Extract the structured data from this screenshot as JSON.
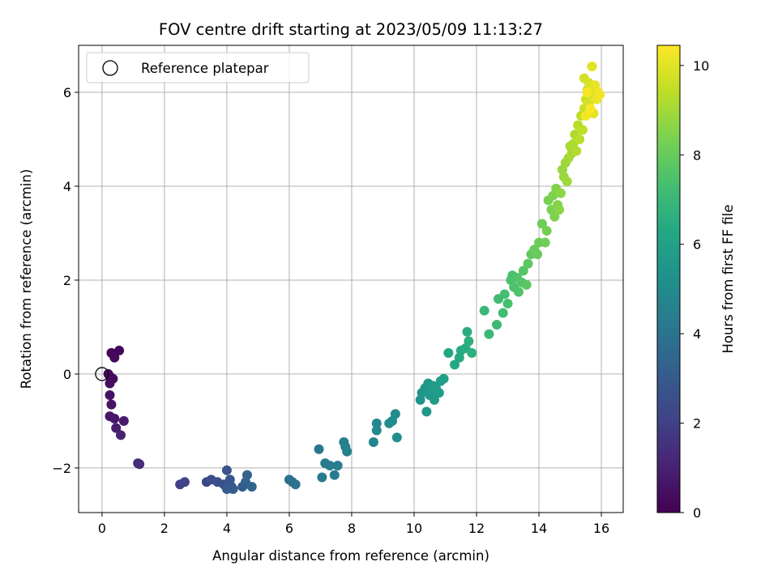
{
  "chart_data": {
    "type": "scatter",
    "title": "FOV centre drift starting at 2023/05/09 11:13:27",
    "xlabel": "Angular distance from reference (arcmin)",
    "ylabel": "Rotation from reference (arcmin)",
    "xlim": [
      -0.75,
      16.7
    ],
    "ylim": [
      -2.95,
      7.0
    ],
    "xticks": [
      0,
      2,
      4,
      6,
      8,
      10,
      12,
      14,
      16
    ],
    "xtick_labels": [
      "0",
      "2",
      "4",
      "6",
      "8",
      "10",
      "12",
      "14",
      "16"
    ],
    "yticks": [
      -2,
      0,
      2,
      4,
      6
    ],
    "ytick_labels": [
      "−2",
      "0",
      "2",
      "4",
      "6"
    ],
    "grid": true,
    "legend": {
      "placement": "upper-left",
      "entries": [
        "Reference platepar"
      ]
    },
    "reference_point": {
      "x": 0,
      "y": 0,
      "marker": "open-circle"
    },
    "colorbar": {
      "label": "Hours from first FF file",
      "range": [
        0,
        10.45
      ],
      "ticks": [
        0,
        2,
        4,
        6,
        8,
        10
      ],
      "tick_labels": [
        "0",
        "2",
        "4",
        "6",
        "8",
        "10"
      ],
      "colormap": "viridis"
    },
    "series": [
      {
        "color_by": "hours",
        "points": [
          {
            "x": 0.25,
            "y": -0.05,
            "c": 0.0
          },
          {
            "x": 0.3,
            "y": 0.45,
            "c": 0.1
          },
          {
            "x": 0.55,
            "y": 0.5,
            "c": 0.15
          },
          {
            "x": 0.4,
            "y": 0.35,
            "c": 0.2
          },
          {
            "x": 0.2,
            "y": 0.0,
            "c": 0.25
          },
          {
            "x": 0.35,
            "y": -0.1,
            "c": 0.3
          },
          {
            "x": 0.25,
            "y": -0.2,
            "c": 0.35
          },
          {
            "x": 0.25,
            "y": -0.45,
            "c": 0.45
          },
          {
            "x": 0.3,
            "y": -0.65,
            "c": 0.55
          },
          {
            "x": 0.25,
            "y": -0.9,
            "c": 0.65
          },
          {
            "x": 0.4,
            "y": -0.95,
            "c": 0.7
          },
          {
            "x": 0.7,
            "y": -1.0,
            "c": 0.8
          },
          {
            "x": 0.45,
            "y": -1.15,
            "c": 0.9
          },
          {
            "x": 0.6,
            "y": -1.3,
            "c": 1.0
          },
          {
            "x": 1.15,
            "y": -1.9,
            "c": 1.3
          },
          {
            "x": 1.2,
            "y": -1.92,
            "c": 1.35
          },
          {
            "x": 2.5,
            "y": -2.35,
            "c": 2.0
          },
          {
            "x": 2.65,
            "y": -2.3,
            "c": 2.1
          },
          {
            "x": 3.35,
            "y": -2.3,
            "c": 2.3
          },
          {
            "x": 3.5,
            "y": -2.25,
            "c": 2.4
          },
          {
            "x": 3.7,
            "y": -2.3,
            "c": 2.5
          },
          {
            "x": 3.9,
            "y": -2.35,
            "c": 2.6
          },
          {
            "x": 4.0,
            "y": -2.05,
            "c": 2.7
          },
          {
            "x": 4.1,
            "y": -2.25,
            "c": 2.8
          },
          {
            "x": 4.15,
            "y": -2.4,
            "c": 2.9
          },
          {
            "x": 4.0,
            "y": -2.45,
            "c": 3.0
          },
          {
            "x": 4.2,
            "y": -2.45,
            "c": 3.05
          },
          {
            "x": 4.5,
            "y": -2.4,
            "c": 3.1
          },
          {
            "x": 4.6,
            "y": -2.3,
            "c": 3.2
          },
          {
            "x": 4.65,
            "y": -2.15,
            "c": 3.3
          },
          {
            "x": 4.8,
            "y": -2.4,
            "c": 3.4
          },
          {
            "x": 6.0,
            "y": -2.25,
            "c": 3.8
          },
          {
            "x": 6.1,
            "y": -2.3,
            "c": 3.85
          },
          {
            "x": 6.2,
            "y": -2.35,
            "c": 3.9
          },
          {
            "x": 6.95,
            "y": -1.6,
            "c": 4.2
          },
          {
            "x": 7.05,
            "y": -2.2,
            "c": 4.25
          },
          {
            "x": 7.15,
            "y": -1.9,
            "c": 4.3
          },
          {
            "x": 7.3,
            "y": -1.95,
            "c": 4.35
          },
          {
            "x": 7.45,
            "y": -2.15,
            "c": 4.4
          },
          {
            "x": 7.55,
            "y": -1.95,
            "c": 4.45
          },
          {
            "x": 7.75,
            "y": -1.45,
            "c": 4.5
          },
          {
            "x": 7.8,
            "y": -1.55,
            "c": 4.55
          },
          {
            "x": 7.85,
            "y": -1.65,
            "c": 4.6
          },
          {
            "x": 8.7,
            "y": -1.45,
            "c": 4.8
          },
          {
            "x": 8.8,
            "y": -1.05,
            "c": 4.85
          },
          {
            "x": 8.8,
            "y": -1.2,
            "c": 4.9
          },
          {
            "x": 9.2,
            "y": -1.05,
            "c": 5.0
          },
          {
            "x": 9.3,
            "y": -1.0,
            "c": 5.05
          },
          {
            "x": 9.4,
            "y": -0.85,
            "c": 5.1
          },
          {
            "x": 9.45,
            "y": -1.35,
            "c": 5.15
          },
          {
            "x": 10.2,
            "y": -0.55,
            "c": 5.4
          },
          {
            "x": 10.25,
            "y": -0.4,
            "c": 5.45
          },
          {
            "x": 10.35,
            "y": -0.3,
            "c": 5.5
          },
          {
            "x": 10.4,
            "y": -0.8,
            "c": 5.55
          },
          {
            "x": 10.45,
            "y": -0.2,
            "c": 5.6
          },
          {
            "x": 10.5,
            "y": -0.45,
            "c": 5.62
          },
          {
            "x": 10.55,
            "y": -0.35,
            "c": 5.65
          },
          {
            "x": 10.6,
            "y": -0.25,
            "c": 5.7
          },
          {
            "x": 10.65,
            "y": -0.55,
            "c": 5.72
          },
          {
            "x": 10.7,
            "y": -0.3,
            "c": 5.75
          },
          {
            "x": 10.8,
            "y": -0.4,
            "c": 5.8
          },
          {
            "x": 10.85,
            "y": -0.15,
            "c": 5.85
          },
          {
            "x": 10.95,
            "y": -0.1,
            "c": 5.9
          },
          {
            "x": 11.1,
            "y": 0.45,
            "c": 6.2
          },
          {
            "x": 11.3,
            "y": 0.2,
            "c": 6.3
          },
          {
            "x": 11.45,
            "y": 0.35,
            "c": 6.35
          },
          {
            "x": 11.5,
            "y": 0.5,
            "c": 6.4
          },
          {
            "x": 11.65,
            "y": 0.55,
            "c": 6.5
          },
          {
            "x": 11.7,
            "y": 0.9,
            "c": 6.55
          },
          {
            "x": 11.75,
            "y": 0.7,
            "c": 6.6
          },
          {
            "x": 11.85,
            "y": 0.45,
            "c": 6.65
          },
          {
            "x": 12.25,
            "y": 1.35,
            "c": 7.0
          },
          {
            "x": 12.4,
            "y": 0.85,
            "c": 7.05
          },
          {
            "x": 12.65,
            "y": 1.05,
            "c": 7.1
          },
          {
            "x": 12.7,
            "y": 1.6,
            "c": 7.2
          },
          {
            "x": 12.85,
            "y": 1.3,
            "c": 7.25
          },
          {
            "x": 12.9,
            "y": 1.7,
            "c": 7.3
          },
          {
            "x": 13.0,
            "y": 1.5,
            "c": 7.35
          },
          {
            "x": 13.1,
            "y": 2.0,
            "c": 7.4
          },
          {
            "x": 13.15,
            "y": 2.1,
            "c": 7.45
          },
          {
            "x": 13.2,
            "y": 1.85,
            "c": 7.5
          },
          {
            "x": 13.3,
            "y": 2.05,
            "c": 7.55
          },
          {
            "x": 13.35,
            "y": 1.75,
            "c": 7.6
          },
          {
            "x": 13.45,
            "y": 1.95,
            "c": 7.65
          },
          {
            "x": 13.5,
            "y": 2.2,
            "c": 7.7
          },
          {
            "x": 13.6,
            "y": 1.9,
            "c": 7.75
          },
          {
            "x": 13.65,
            "y": 2.35,
            "c": 7.8
          },
          {
            "x": 13.75,
            "y": 2.55,
            "c": 7.85
          },
          {
            "x": 13.85,
            "y": 2.65,
            "c": 8.0
          },
          {
            "x": 13.95,
            "y": 2.55,
            "c": 8.05
          },
          {
            "x": 14.0,
            "y": 2.8,
            "c": 8.1
          },
          {
            "x": 14.1,
            "y": 3.2,
            "c": 8.15
          },
          {
            "x": 14.2,
            "y": 2.8,
            "c": 8.2
          },
          {
            "x": 14.25,
            "y": 3.05,
            "c": 8.25
          },
          {
            "x": 14.3,
            "y": 3.7,
            "c": 8.3
          },
          {
            "x": 14.4,
            "y": 3.5,
            "c": 8.35
          },
          {
            "x": 14.45,
            "y": 3.8,
            "c": 8.4
          },
          {
            "x": 14.5,
            "y": 3.35,
            "c": 8.45
          },
          {
            "x": 14.55,
            "y": 3.95,
            "c": 8.5
          },
          {
            "x": 14.6,
            "y": 3.6,
            "c": 8.55
          },
          {
            "x": 14.65,
            "y": 3.5,
            "c": 8.6
          },
          {
            "x": 14.7,
            "y": 3.85,
            "c": 8.65
          },
          {
            "x": 14.75,
            "y": 4.35,
            "c": 8.8
          },
          {
            "x": 14.8,
            "y": 4.2,
            "c": 8.85
          },
          {
            "x": 14.85,
            "y": 4.5,
            "c": 8.9
          },
          {
            "x": 14.9,
            "y": 4.1,
            "c": 8.95
          },
          {
            "x": 14.95,
            "y": 4.6,
            "c": 9.0
          },
          {
            "x": 15.0,
            "y": 4.85,
            "c": 9.05
          },
          {
            "x": 15.05,
            "y": 4.7,
            "c": 9.1
          },
          {
            "x": 15.1,
            "y": 4.9,
            "c": 9.15
          },
          {
            "x": 15.15,
            "y": 5.1,
            "c": 9.2
          },
          {
            "x": 15.2,
            "y": 4.75,
            "c": 9.25
          },
          {
            "x": 15.25,
            "y": 5.3,
            "c": 9.3
          },
          {
            "x": 15.3,
            "y": 5.0,
            "c": 9.35
          },
          {
            "x": 15.35,
            "y": 5.5,
            "c": 9.4
          },
          {
            "x": 15.4,
            "y": 5.2,
            "c": 9.45
          },
          {
            "x": 15.45,
            "y": 5.65,
            "c": 9.6
          },
          {
            "x": 15.5,
            "y": 5.85,
            "c": 9.65
          },
          {
            "x": 15.45,
            "y": 6.3,
            "c": 9.7
          },
          {
            "x": 15.55,
            "y": 6.05,
            "c": 9.75
          },
          {
            "x": 15.6,
            "y": 5.75,
            "c": 9.8
          },
          {
            "x": 15.6,
            "y": 6.2,
            "c": 9.85
          },
          {
            "x": 15.65,
            "y": 5.95,
            "c": 9.9
          },
          {
            "x": 15.7,
            "y": 6.1,
            "c": 9.95
          },
          {
            "x": 15.7,
            "y": 6.55,
            "c": 10.0
          },
          {
            "x": 15.75,
            "y": 5.55,
            "c": 10.05
          },
          {
            "x": 15.8,
            "y": 6.15,
            "c": 10.1
          },
          {
            "x": 15.85,
            "y": 5.85,
            "c": 10.15
          },
          {
            "x": 15.9,
            "y": 6.0,
            "c": 10.2
          },
          {
            "x": 15.95,
            "y": 5.95,
            "c": 10.25
          },
          {
            "x": 15.5,
            "y": 5.5,
            "c": 10.3
          },
          {
            "x": 15.55,
            "y": 6.0,
            "c": 10.35
          },
          {
            "x": 15.65,
            "y": 5.65,
            "c": 10.4
          }
        ]
      }
    ]
  }
}
